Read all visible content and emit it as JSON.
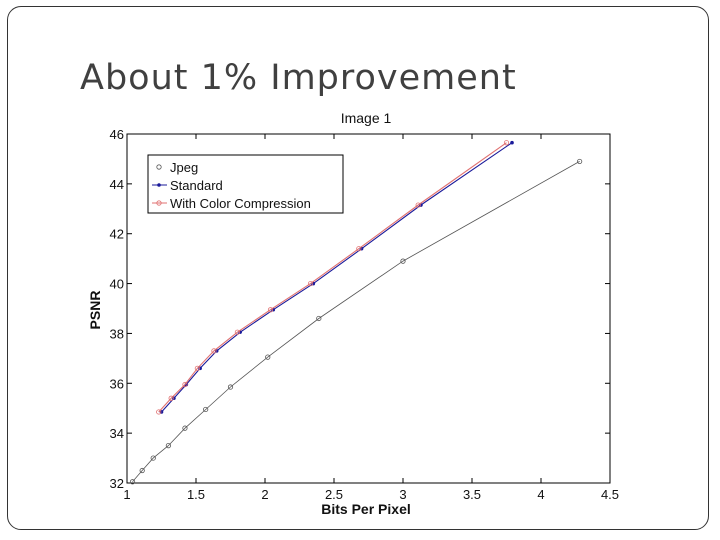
{
  "slide": {
    "title": "About 1% Improvement"
  },
  "colors": {
    "jpeg": "#555555",
    "standard": "#1a1a9a",
    "color_compression": "#e07070",
    "axis": "#000000"
  },
  "chart_data": {
    "type": "line",
    "title": "Image 1",
    "xlabel": "Bits Per Pixel",
    "ylabel": "PSNR",
    "xlim": [
      1,
      4.5
    ],
    "ylim": [
      32,
      46
    ],
    "x_ticks": [
      1,
      1.5,
      2,
      2.5,
      3,
      3.5,
      4,
      4.5
    ],
    "x_tick_labels": [
      "1",
      "1.5",
      "2",
      "2.5",
      "3",
      "3.5",
      "4",
      "4.5"
    ],
    "y_ticks": [
      32,
      34,
      36,
      38,
      40,
      42,
      44,
      46
    ],
    "y_tick_labels": [
      "32",
      "34",
      "36",
      "38",
      "40",
      "42",
      "44",
      "46"
    ],
    "grid": false,
    "legend_position": "top-left",
    "series": [
      {
        "name": "Jpeg",
        "marker": "circle",
        "points": [
          [
            1.04,
            32.05
          ],
          [
            1.11,
            32.5
          ],
          [
            1.19,
            33.0
          ],
          [
            1.3,
            33.5
          ],
          [
            1.42,
            34.2
          ],
          [
            1.57,
            34.95
          ],
          [
            1.75,
            35.85
          ],
          [
            2.02,
            37.05
          ],
          [
            2.39,
            38.6
          ],
          [
            3.0,
            40.9
          ],
          [
            4.28,
            44.9
          ]
        ]
      },
      {
        "name": "Standard",
        "marker": "dot",
        "points": [
          [
            1.25,
            34.85
          ],
          [
            1.34,
            35.4
          ],
          [
            1.43,
            35.95
          ],
          [
            1.53,
            36.6
          ],
          [
            1.65,
            37.3
          ],
          [
            1.82,
            38.05
          ],
          [
            2.06,
            38.95
          ],
          [
            2.35,
            40.0
          ],
          [
            2.7,
            41.4
          ],
          [
            3.13,
            43.15
          ],
          [
            3.79,
            45.65
          ]
        ]
      },
      {
        "name": "With Color Compression",
        "marker": "circle",
        "points": [
          [
            1.23,
            34.85
          ],
          [
            1.32,
            35.4
          ],
          [
            1.42,
            35.95
          ],
          [
            1.51,
            36.6
          ],
          [
            1.63,
            37.3
          ],
          [
            1.8,
            38.05
          ],
          [
            2.04,
            38.95
          ],
          [
            2.33,
            40.0
          ],
          [
            2.68,
            41.4
          ],
          [
            3.11,
            43.15
          ],
          [
            3.75,
            45.65
          ]
        ]
      }
    ]
  }
}
